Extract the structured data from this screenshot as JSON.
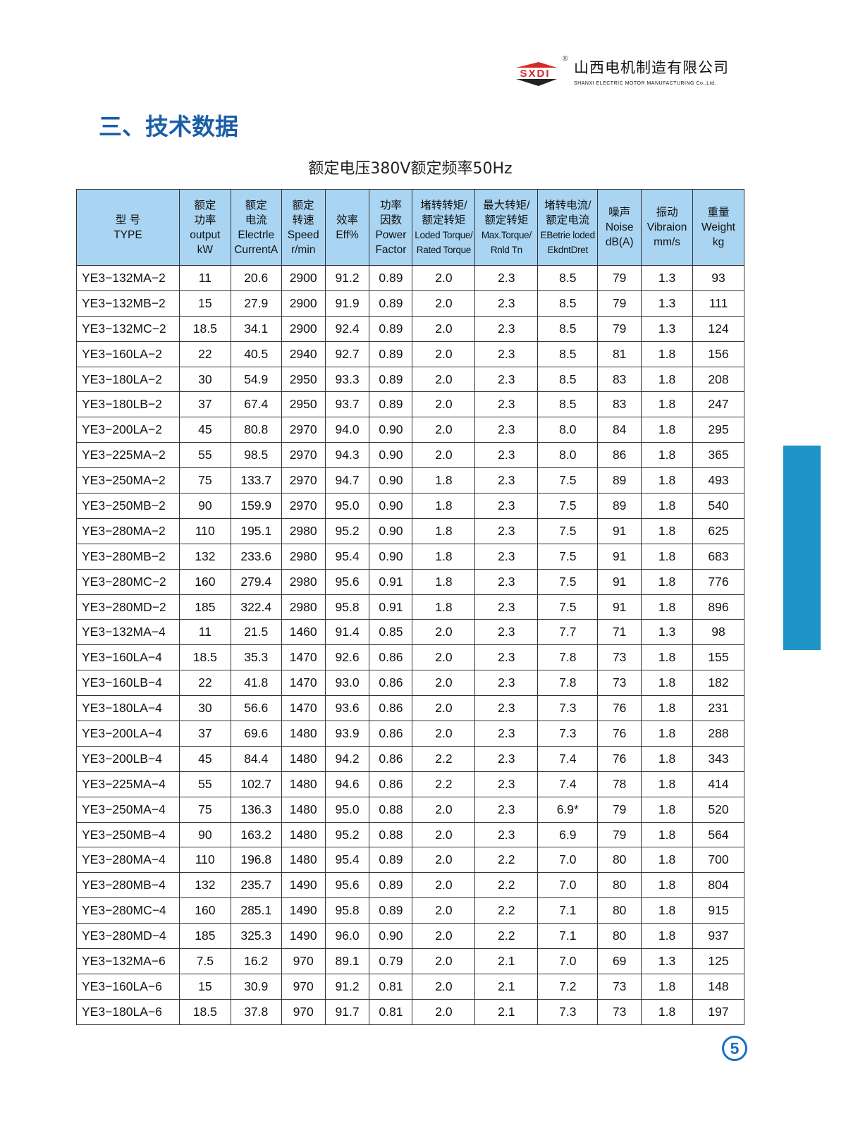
{
  "logo": {
    "mark": "SXDI",
    "reg": "®",
    "cn": "山西电机制造有限公司",
    "en": "SHANXI ELECTRIC MOTOR MANUFACTURING Co.,Ltd."
  },
  "title": "三、技术数据",
  "subtitle": "额定电压380V额定频率50Hz",
  "colors": {
    "header_bg": "#a9d5f2",
    "title": "#1a5ea8",
    "side_tab": "#1e95c6"
  },
  "headers": [
    [
      "型 号",
      "TYPE"
    ],
    [
      "额定",
      "功率",
      "output",
      "kW"
    ],
    [
      "额定",
      "电流",
      "Electrle",
      "CurrentA"
    ],
    [
      "额定",
      "转速",
      "Speed",
      "r/min"
    ],
    [
      "效率",
      "Eff%"
    ],
    [
      "功率",
      "因数",
      "Power",
      "Factor"
    ],
    [
      "堵转转矩/",
      "额定转矩",
      "Loded Torque/",
      "Rated Torque"
    ],
    [
      "最大转矩/",
      "额定转矩",
      "Max.Torque/",
      "Rnld Tn"
    ],
    [
      "堵转电流/",
      "额定电流",
      "EBetrie loded",
      "EkdntDret"
    ],
    [
      "噪声",
      "Noise",
      "dB(A)"
    ],
    [
      "振动",
      "Vibraion",
      "mm/s"
    ],
    [
      "重量",
      "Weight",
      "kg"
    ]
  ],
  "rows": [
    [
      "YE3−132MA−2",
      "11",
      "20.6",
      "2900",
      "91.2",
      "0.89",
      "2.0",
      "2.3",
      "8.5",
      "79",
      "1.3",
      "93"
    ],
    [
      "YE3−132MB−2",
      "15",
      "27.9",
      "2900",
      "91.9",
      "0.89",
      "2.0",
      "2.3",
      "8.5",
      "79",
      "1.3",
      "111"
    ],
    [
      "YE3−132MC−2",
      "18.5",
      "34.1",
      "2900",
      "92.4",
      "0.89",
      "2.0",
      "2.3",
      "8.5",
      "79",
      "1.3",
      "124"
    ],
    [
      "YE3−160LA−2",
      "22",
      "40.5",
      "2940",
      "92.7",
      "0.89",
      "2.0",
      "2.3",
      "8.5",
      "81",
      "1.8",
      "156"
    ],
    [
      "YE3−180LA−2",
      "30",
      "54.9",
      "2950",
      "93.3",
      "0.89",
      "2.0",
      "2.3",
      "8.5",
      "83",
      "1.8",
      "208"
    ],
    [
      "YE3−180LB−2",
      "37",
      "67.4",
      "2950",
      "93.7",
      "0.89",
      "2.0",
      "2.3",
      "8.5",
      "83",
      "1.8",
      "247"
    ],
    [
      "YE3−200LA−2",
      "45",
      "80.8",
      "2970",
      "94.0",
      "0.90",
      "2.0",
      "2.3",
      "8.0",
      "84",
      "1.8",
      "295"
    ],
    [
      "YE3−225MA−2",
      "55",
      "98.5",
      "2970",
      "94.3",
      "0.90",
      "2.0",
      "2.3",
      "8.0",
      "86",
      "1.8",
      "365"
    ],
    [
      "YE3−250MA−2",
      "75",
      "133.7",
      "2970",
      "94.7",
      "0.90",
      "1.8",
      "2.3",
      "7.5",
      "89",
      "1.8",
      "493"
    ],
    [
      "YE3−250MB−2",
      "90",
      "159.9",
      "2970",
      "95.0",
      "0.90",
      "1.8",
      "2.3",
      "7.5",
      "89",
      "1.8",
      "540"
    ],
    [
      "YE3−280MA−2",
      "110",
      "195.1",
      "2980",
      "95.2",
      "0.90",
      "1.8",
      "2.3",
      "7.5",
      "91",
      "1.8",
      "625"
    ],
    [
      "YE3−280MB−2",
      "132",
      "233.6",
      "2980",
      "95.4",
      "0.90",
      "1.8",
      "2.3",
      "7.5",
      "91",
      "1.8",
      "683"
    ],
    [
      "YE3−280MC−2",
      "160",
      "279.4",
      "2980",
      "95.6",
      "0.91",
      "1.8",
      "2.3",
      "7.5",
      "91",
      "1.8",
      "776"
    ],
    [
      "YE3−280MD−2",
      "185",
      "322.4",
      "2980",
      "95.8",
      "0.91",
      "1.8",
      "2.3",
      "7.5",
      "91",
      "1.8",
      "896"
    ],
    [
      "YE3−132MA−4",
      "11",
      "21.5",
      "1460",
      "91.4",
      "0.85",
      "2.0",
      "2.3",
      "7.7",
      "71",
      "1.3",
      "98"
    ],
    [
      "YE3−160LA−4",
      "18.5",
      "35.3",
      "1470",
      "92.6",
      "0.86",
      "2.0",
      "2.3",
      "7.8",
      "73",
      "1.8",
      "155"
    ],
    [
      "YE3−160LB−4",
      "22",
      "41.8",
      "1470",
      "93.0",
      "0.86",
      "2.0",
      "2.3",
      "7.8",
      "73",
      "1.8",
      "182"
    ],
    [
      "YE3−180LA−4",
      "30",
      "56.6",
      "1470",
      "93.6",
      "0.86",
      "2.0",
      "2.3",
      "7.3",
      "76",
      "1.8",
      "231"
    ],
    [
      "YE3−200LA−4",
      "37",
      "69.6",
      "1480",
      "93.9",
      "0.86",
      "2.0",
      "2.3",
      "7.3",
      "76",
      "1.8",
      "288"
    ],
    [
      "YE3−200LB−4",
      "45",
      "84.4",
      "1480",
      "94.2",
      "0.86",
      "2.2",
      "2.3",
      "7.4",
      "76",
      "1.8",
      "343"
    ],
    [
      "YE3−225MA−4",
      "55",
      "102.7",
      "1480",
      "94.6",
      "0.86",
      "2.2",
      "2.3",
      "7.4",
      "78",
      "1.8",
      "414"
    ],
    [
      "YE3−250MA−4",
      "75",
      "136.3",
      "1480",
      "95.0",
      "0.88",
      "2.0",
      "2.3",
      "6.9*",
      "79",
      "1.8",
      "520"
    ],
    [
      "YE3−250MB−4",
      "90",
      "163.2",
      "1480",
      "95.2",
      "0.88",
      "2.0",
      "2.3",
      "6.9",
      "79",
      "1.8",
      "564"
    ],
    [
      "YE3−280MA−4",
      "110",
      "196.8",
      "1480",
      "95.4",
      "0.89",
      "2.0",
      "2.2",
      "7.0",
      "80",
      "1.8",
      "700"
    ],
    [
      "YE3−280MB−4",
      "132",
      "235.7",
      "1490",
      "95.6",
      "0.89",
      "2.0",
      "2.2",
      "7.0",
      "80",
      "1.8",
      "804"
    ],
    [
      "YE3−280MC−4",
      "160",
      "285.1",
      "1490",
      "95.8",
      "0.89",
      "2.0",
      "2.2",
      "7.1",
      "80",
      "1.8",
      "915"
    ],
    [
      "YE3−280MD−4",
      "185",
      "325.3",
      "1490",
      "96.0",
      "0.90",
      "2.0",
      "2.2",
      "7.1",
      "80",
      "1.8",
      "937"
    ],
    [
      "YE3−132MA−6",
      "7.5",
      "16.2",
      "970",
      "89.1",
      "0.79",
      "2.0",
      "2.1",
      "7.0",
      "69",
      "1.3",
      "125"
    ],
    [
      "YE3−160LA−6",
      "15",
      "30.9",
      "970",
      "91.2",
      "0.81",
      "2.0",
      "2.1",
      "7.2",
      "73",
      "1.8",
      "148"
    ],
    [
      "YE3−180LA−6",
      "18.5",
      "37.8",
      "970",
      "91.7",
      "0.81",
      "2.0",
      "2.1",
      "7.3",
      "73",
      "1.8",
      "197"
    ]
  ],
  "page_number": "5"
}
